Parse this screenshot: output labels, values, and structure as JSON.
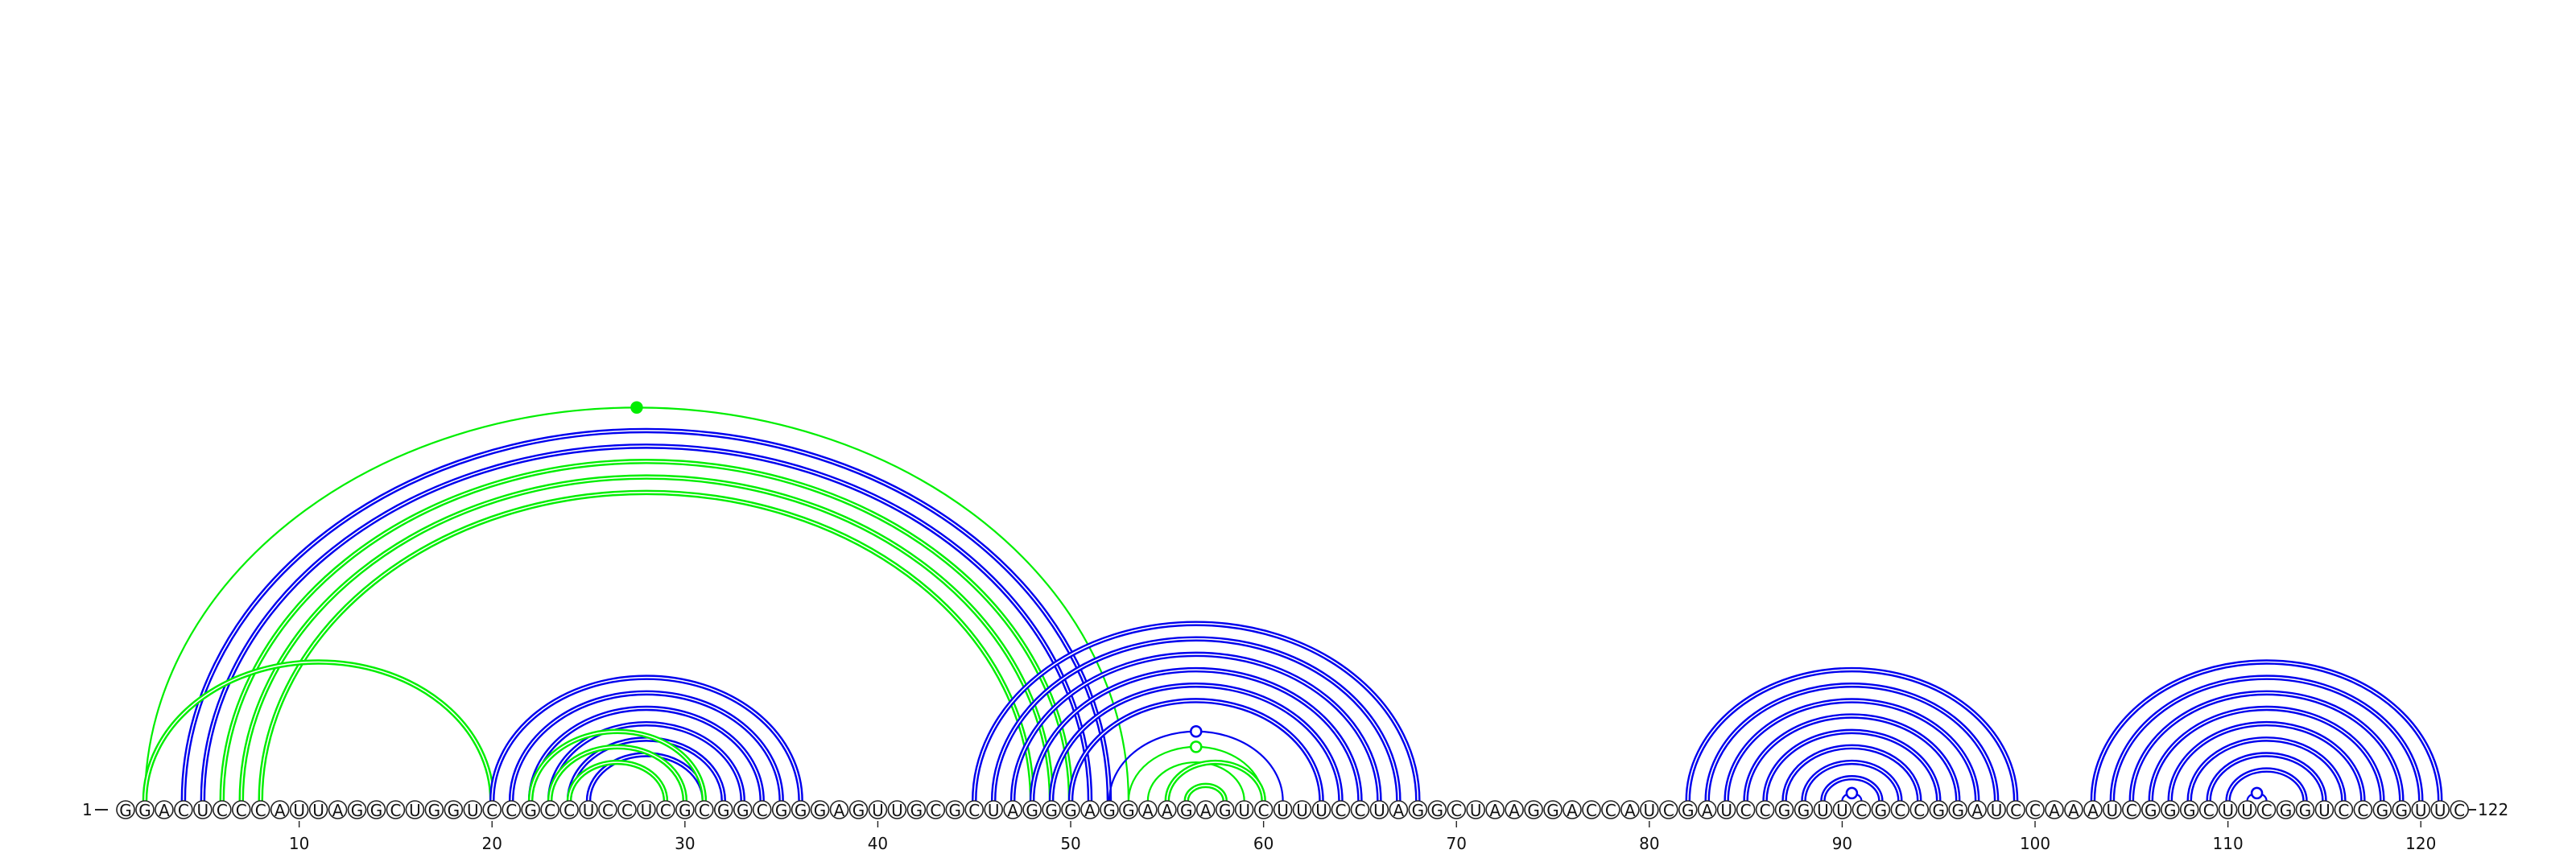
{
  "sequence": "GGACUCCCAUUAGGCUGGUCCGCCUCCUCGCGGCGGGAGUUGCGCUAGGGAGGAAGAGUCUUUCCUAGGCUAAGGACCAUCGAUCCGGUUCGCCGGAUCCAAAUCGGGCUUCGGUCCGGUUC",
  "start_label": "1",
  "end_label": "122",
  "axis_ticks": [
    "10",
    "20",
    "30",
    "40",
    "50",
    "60",
    "70",
    "80",
    "90",
    "100",
    "110",
    "120"
  ],
  "colors": {
    "green": "#00ee00",
    "blue": "#0000ee",
    "green_thick": "#00dd00",
    "blue_thick": "#0000dd"
  },
  "arc_groups": [
    {
      "color": "green",
      "weight": "thin",
      "pairs": [
        [
          2,
          53
        ]
      ],
      "markers": [
        "filled"
      ]
    },
    {
      "color": "blue",
      "weight": "double",
      "pairs": [
        [
          4,
          52
        ],
        [
          5,
          51
        ]
      ]
    },
    {
      "color": "green",
      "weight": "double",
      "pairs": [
        [
          6,
          50
        ],
        [
          7,
          49
        ],
        [
          8,
          48
        ]
      ]
    },
    {
      "color": "green",
      "weight": "double",
      "pairs": [
        [
          2,
          20
        ]
      ]
    },
    {
      "color": "blue",
      "weight": "double",
      "pairs": [
        [
          20,
          36
        ],
        [
          21,
          35
        ],
        [
          22,
          34
        ],
        [
          23,
          33
        ],
        [
          24,
          32
        ],
        [
          25,
          31
        ]
      ]
    },
    {
      "color": "green",
      "weight": "double",
      "pairs": [
        [
          22,
          31
        ],
        [
          23,
          30
        ],
        [
          24,
          29
        ]
      ]
    },
    {
      "color": "blue",
      "weight": "double",
      "pairs": [
        [
          45,
          68
        ],
        [
          46,
          67
        ],
        [
          47,
          66
        ],
        [
          48,
          65
        ],
        [
          49,
          64
        ],
        [
          50,
          63
        ]
      ]
    },
    {
      "color": "blue",
      "weight": "thin",
      "pairs": [
        [
          52,
          61
        ]
      ],
      "markers": [
        "open"
      ]
    },
    {
      "color": "green",
      "weight": "thin",
      "pairs": [
        [
          53,
          60
        ],
        [
          54,
          59
        ]
      ],
      "markers": [
        "open",
        "none"
      ]
    },
    {
      "color": "green",
      "weight": "double",
      "pairs": [
        [
          55,
          60
        ],
        [
          56,
          58
        ]
      ]
    },
    {
      "color": "blue",
      "weight": "double",
      "pairs": [
        [
          82,
          99
        ],
        [
          83,
          98
        ],
        [
          84,
          97
        ],
        [
          85,
          96
        ],
        [
          86,
          95
        ],
        [
          87,
          94
        ],
        [
          88,
          93
        ],
        [
          89,
          92
        ]
      ]
    },
    {
      "color": "blue",
      "weight": "thin",
      "pairs": [
        [
          90,
          91
        ]
      ],
      "markers": [
        "open"
      ]
    },
    {
      "color": "blue",
      "weight": "double",
      "pairs": [
        [
          103,
          121
        ],
        [
          104,
          120
        ],
        [
          105,
          119
        ],
        [
          106,
          118
        ],
        [
          107,
          117
        ],
        [
          108,
          116
        ],
        [
          109,
          115
        ],
        [
          110,
          114
        ]
      ]
    },
    {
      "color": "blue",
      "weight": "thin",
      "pairs": [
        [
          111,
          112
        ]
      ],
      "markers": [
        "open"
      ]
    }
  ]
}
